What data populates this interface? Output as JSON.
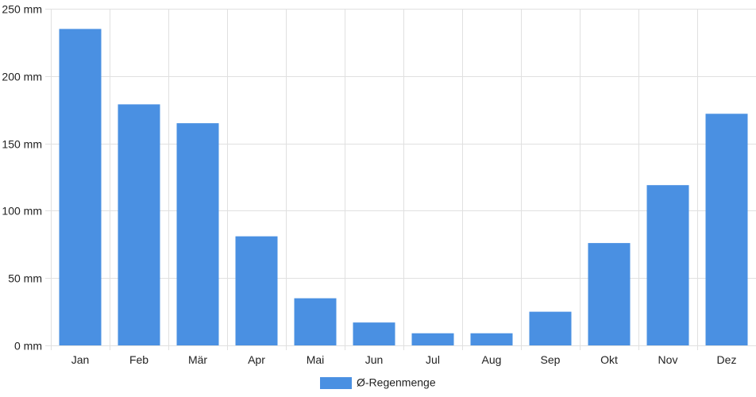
{
  "chart_data": {
    "type": "bar",
    "categories": [
      "Jan",
      "Feb",
      "Mär",
      "Apr",
      "Mai",
      "Jun",
      "Jul",
      "Aug",
      "Sep",
      "Okt",
      "Nov",
      "Dez"
    ],
    "series": [
      {
        "name": "Ø-Regenmenge",
        "values": [
          235,
          179,
          165,
          81,
          35,
          17,
          9,
          9,
          25,
          76,
          119,
          172
        ],
        "color": "#4a90e2"
      }
    ],
    "y_ticks": [
      "0 mm",
      "50 mm",
      "100 mm",
      "150 mm",
      "200 mm",
      "250 mm"
    ],
    "ylim": [
      0,
      250
    ],
    "y_unit": "mm",
    "grid": true,
    "legend_position": "bottom-center",
    "gridline_color": "#e0e0e0"
  }
}
